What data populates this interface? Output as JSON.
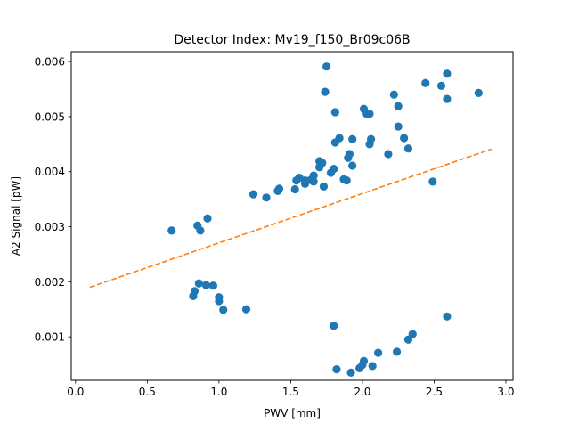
{
  "chart_data": {
    "type": "scatter",
    "title": "Detector Index: Mv19_f150_Br09c06B",
    "xlabel": "PWV [mm]",
    "ylabel": "A2 Signal [pW]",
    "xlim": [
      -0.03,
      3.05
    ],
    "ylim": [
      0.00021,
      0.00618
    ],
    "xticks": [
      0.0,
      0.5,
      1.0,
      1.5,
      2.0,
      2.5,
      3.0
    ],
    "xtick_labels": [
      "0.0",
      "0.5",
      "1.0",
      "1.5",
      "2.0",
      "2.5",
      "3.0"
    ],
    "yticks": [
      0.001,
      0.002,
      0.003,
      0.004,
      0.005,
      0.006
    ],
    "ytick_labels": [
      "0.001",
      "0.002",
      "0.003",
      "0.004",
      "0.005",
      "0.006"
    ],
    "series": [
      {
        "name": "data",
        "kind": "scatter",
        "color": "#1f77b4",
        "points": [
          [
            0.67,
            0.00293
          ],
          [
            0.85,
            0.00302
          ],
          [
            0.87,
            0.00293
          ],
          [
            0.92,
            0.00315
          ],
          [
            0.82,
            0.00174
          ],
          [
            0.83,
            0.00183
          ],
          [
            0.86,
            0.00197
          ],
          [
            0.91,
            0.00194
          ],
          [
            0.96,
            0.00193
          ],
          [
            1.0,
            0.00172
          ],
          [
            1.0,
            0.00165
          ],
          [
            1.03,
            0.00149
          ],
          [
            1.19,
            0.0015
          ],
          [
            1.24,
            0.00359
          ],
          [
            1.33,
            0.00353
          ],
          [
            1.41,
            0.00365
          ],
          [
            1.42,
            0.00369
          ],
          [
            1.53,
            0.00368
          ],
          [
            1.54,
            0.00384
          ],
          [
            1.56,
            0.00389
          ],
          [
            1.6,
            0.00378
          ],
          [
            1.6,
            0.00384
          ],
          [
            1.64,
            0.00385
          ],
          [
            1.66,
            0.00382
          ],
          [
            1.66,
            0.00393
          ],
          [
            1.7,
            0.00408
          ],
          [
            1.7,
            0.00419
          ],
          [
            1.72,
            0.00416
          ],
          [
            1.73,
            0.00373
          ],
          [
            1.74,
            0.00545
          ],
          [
            1.75,
            0.00591
          ],
          [
            1.78,
            0.00398
          ],
          [
            1.8,
            0.00405
          ],
          [
            1.81,
            0.00508
          ],
          [
            1.81,
            0.00453
          ],
          [
            1.84,
            0.00461
          ],
          [
            1.87,
            0.00386
          ],
          [
            1.89,
            0.00384
          ],
          [
            1.9,
            0.00425
          ],
          [
            1.91,
            0.00432
          ],
          [
            1.93,
            0.00459
          ],
          [
            1.93,
            0.00411
          ],
          [
            2.01,
            0.00514
          ],
          [
            2.03,
            0.00505
          ],
          [
            2.05,
            0.00505
          ],
          [
            2.05,
            0.0045
          ],
          [
            2.06,
            0.00459
          ],
          [
            2.18,
            0.00432
          ],
          [
            2.22,
            0.0054
          ],
          [
            2.25,
            0.00519
          ],
          [
            2.25,
            0.00482
          ],
          [
            2.29,
            0.00461
          ],
          [
            2.32,
            0.00442
          ],
          [
            2.44,
            0.00561
          ],
          [
            2.49,
            0.00382
          ],
          [
            2.55,
            0.00556
          ],
          [
            2.59,
            0.00578
          ],
          [
            2.59,
            0.00532
          ],
          [
            2.81,
            0.00543
          ],
          [
            1.8,
            0.0012
          ],
          [
            1.82,
            0.00041
          ],
          [
            1.92,
            0.00035
          ],
          [
            1.98,
            0.00043
          ],
          [
            2.0,
            0.00049
          ],
          [
            2.01,
            0.00056
          ],
          [
            2.07,
            0.00047
          ],
          [
            2.11,
            0.00071
          ],
          [
            2.24,
            0.00073
          ],
          [
            2.32,
            0.00095
          ],
          [
            2.35,
            0.00105
          ],
          [
            2.59,
            0.00137
          ]
        ]
      },
      {
        "name": "fit",
        "kind": "line",
        "style": "dashed",
        "color": "#ff7f0e",
        "x": [
          0.1,
          2.9
        ],
        "y": [
          0.0019,
          0.00441
        ]
      }
    ]
  }
}
